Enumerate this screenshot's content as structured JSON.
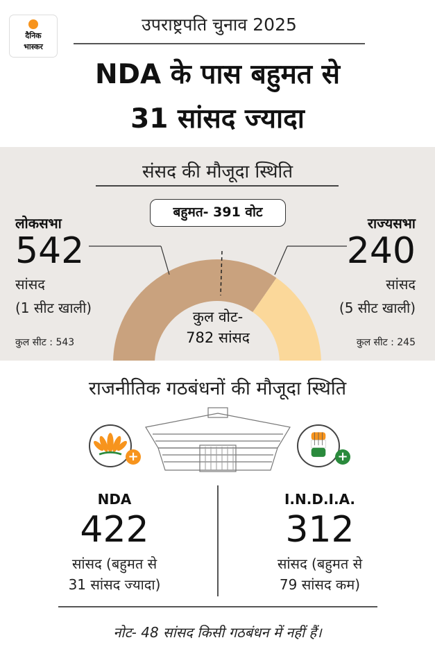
{
  "brand": {
    "line1": "दैनिक",
    "line2": "भास्कर",
    "accent": "#f7941d"
  },
  "kicker": "उपराष्ट्रपति चुनाव 2025",
  "headline": {
    "line1": "NDA के पास बहुमत से",
    "line2": "31 सांसद ज्यादा"
  },
  "parliament_status": {
    "title": "संसद की मौजूदा स्थिति",
    "majority": "बहुमत- 391 वोट",
    "total_votes_line1": "कुल वोट-",
    "total_votes_line2": "782 सांसद",
    "lok_sabha": {
      "name": "लोकसभा",
      "mps": "542",
      "unit": "सांसद",
      "vacant": "(1 सीट खाली)",
      "total_seats": "कुल सीट : 543",
      "value": 542,
      "color": "#c9a27e"
    },
    "rajya_sabha": {
      "name": "राज्यसभा",
      "mps": "240",
      "unit": "सांसद",
      "vacant": "(5 सीट खाली)",
      "total_seats": "कुल सीट : 245",
      "value": 240,
      "color": "#fbd89a"
    }
  },
  "alliances": {
    "title": "राजनीतिक गठबंधनों की मौजूदा स्थिति",
    "nda": {
      "name": "NDA",
      "mps": "422",
      "desc_line1": "सांसद (बहुमत से",
      "desc_line2": "31 सांसद ज्यादा)",
      "logo_icon": "lotus-icon",
      "color": "#f7941d"
    },
    "india": {
      "name": "I.N.D.I.A.",
      "mps": "312",
      "desc_line1": "सांसद (बहुमत से",
      "desc_line2": "79 सांसद कम)",
      "logo_icon": "hand-icon",
      "color": "#2a8a3c"
    }
  },
  "note": "नोट- 48 सांसद किसी गठबंधन में नहीं हैं।"
}
